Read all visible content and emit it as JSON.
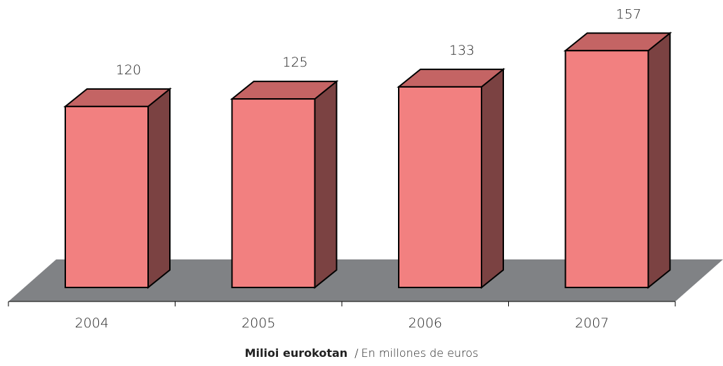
{
  "chart_data": {
    "type": "bar",
    "categories": [
      "2004",
      "2005",
      "2006",
      "2007"
    ],
    "values": [
      120,
      125,
      133,
      157
    ],
    "title": "",
    "xlabel": "",
    "ylabel": "",
    "grid": false,
    "legend": "none",
    "colors": {
      "front": "#f28080",
      "top": "#c46464",
      "side": "#7b4242",
      "floor": "#808285",
      "outline": "#000000"
    }
  },
  "caption": {
    "bold": "Milioi eurokotan",
    "separator": "/",
    "normal": "En millones de euros"
  }
}
